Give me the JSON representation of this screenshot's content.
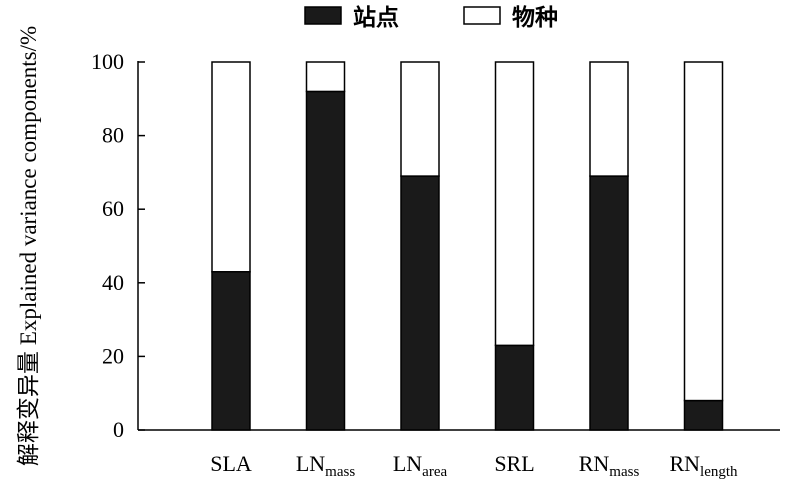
{
  "chart_data": {
    "type": "bar",
    "stacked": true,
    "title": "",
    "xlabel": "",
    "ylabel_cn": "解释变异量",
    "ylabel_en": "Explained variance components/%",
    "ylim": [
      0,
      100
    ],
    "yticks": [
      0,
      20,
      40,
      60,
      80,
      100
    ],
    "grid": false,
    "legend_position": "top-center",
    "categories": [
      {
        "base": "SLA",
        "sub": ""
      },
      {
        "base": "LN",
        "sub": "mass"
      },
      {
        "base": "LN",
        "sub": "area"
      },
      {
        "base": "SRL",
        "sub": ""
      },
      {
        "base": "RN",
        "sub": "mass"
      },
      {
        "base": "RN",
        "sub": "length"
      }
    ],
    "series": [
      {
        "name": "站点",
        "color": "#1a1a1a",
        "values": [
          43,
          92,
          69,
          23,
          69,
          8
        ]
      },
      {
        "name": "物种",
        "color": "#ffffff",
        "values": [
          57,
          8,
          31,
          77,
          31,
          92
        ]
      }
    ]
  }
}
